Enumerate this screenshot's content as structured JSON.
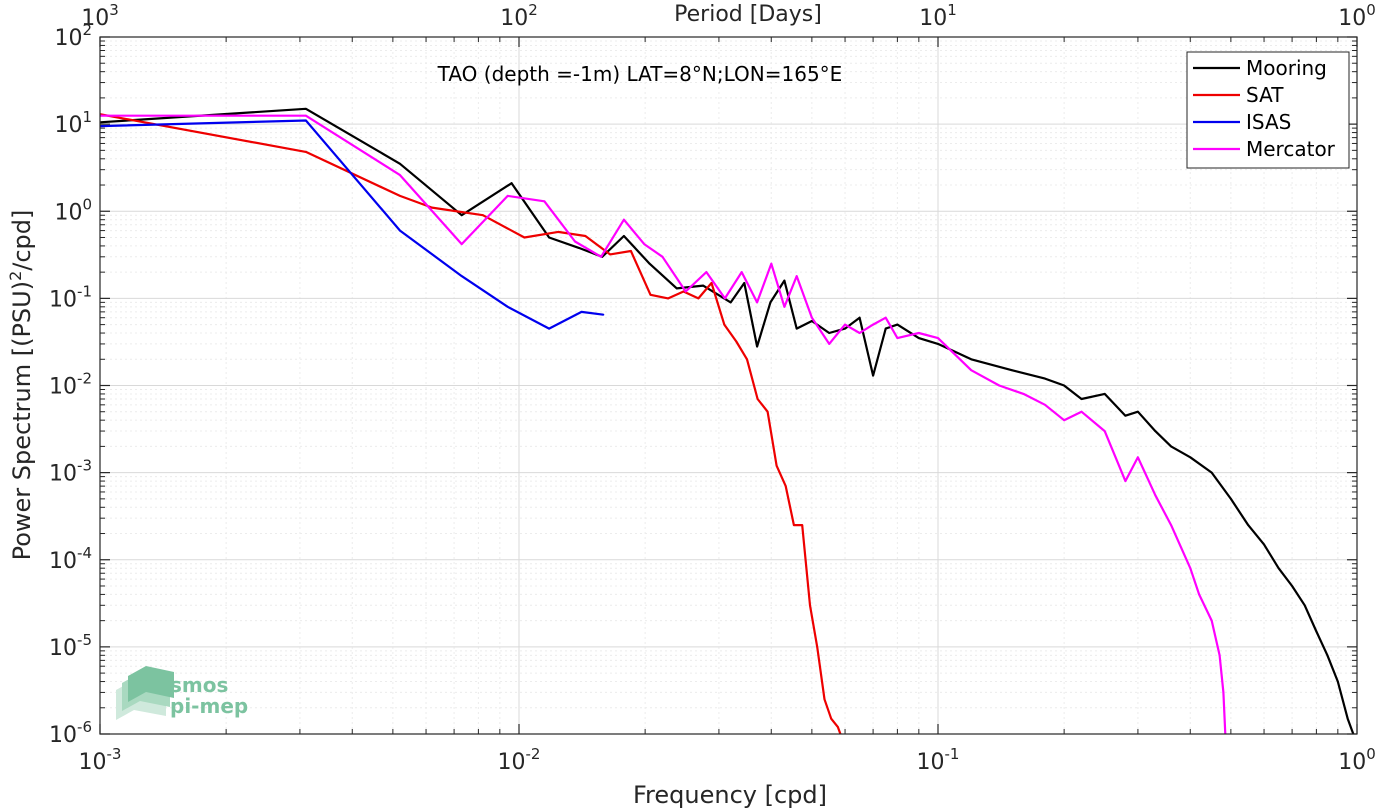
{
  "chart_data": {
    "type": "line",
    "xscale": "log",
    "yscale": "log",
    "xlabel": "Frequency [cpd]",
    "ylabel": "Power Spectrum [(PSU)",
    "ylabel_sup": "2",
    "ylabel_tail": "/cpd]",
    "top_xlabel": "Period [Days]",
    "xlim": [
      0.001,
      1
    ],
    "ylim": [
      1e-06,
      100
    ],
    "grid": true,
    "legend_position": "top-right",
    "x_ticks": [
      {
        "base": "10",
        "exp": "-3"
      },
      {
        "base": "10",
        "exp": "-2"
      },
      {
        "base": "10",
        "exp": "-1"
      },
      {
        "base": "10",
        "exp": "0"
      }
    ],
    "top_ticks": [
      {
        "base": "10",
        "exp": "3"
      },
      {
        "base": "10",
        "exp": "2"
      },
      {
        "base": "10",
        "exp": "1"
      },
      {
        "base": "10",
        "exp": "0"
      }
    ],
    "y_ticks": [
      {
        "base": "10",
        "exp": "2"
      },
      {
        "base": "10",
        "exp": "1"
      },
      {
        "base": "10",
        "exp": "0"
      },
      {
        "base": "10",
        "exp": "-1"
      },
      {
        "base": "10",
        "exp": "-2"
      },
      {
        "base": "10",
        "exp": "-3"
      },
      {
        "base": "10",
        "exp": "-4"
      },
      {
        "base": "10",
        "exp": "-5"
      },
      {
        "base": "10",
        "exp": "-6"
      }
    ],
    "annotation": "TAO (depth =-1m) LAT=8°N;LON=165°E",
    "series": [
      {
        "name": "Mooring",
        "color": "#000000",
        "x": [
          0.001,
          0.0031,
          0.0052,
          0.0073,
          0.0096,
          0.0118,
          0.0139,
          0.0158,
          0.0178,
          0.0205,
          0.0238,
          0.0275,
          0.032,
          0.0345,
          0.037,
          0.0398,
          0.043,
          0.046,
          0.05,
          0.055,
          0.06,
          0.065,
          0.07,
          0.075,
          0.08,
          0.09,
          0.1,
          0.12,
          0.15,
          0.18,
          0.2,
          0.22,
          0.25,
          0.28,
          0.3,
          0.33,
          0.36,
          0.4,
          0.45,
          0.5,
          0.55,
          0.6,
          0.65,
          0.7,
          0.75,
          0.8,
          0.85,
          0.9,
          0.95,
          0.98
        ],
        "y": [
          10.5,
          15,
          3.5,
          0.9,
          2.1,
          0.5,
          0.38,
          0.3,
          0.52,
          0.25,
          0.13,
          0.14,
          0.09,
          0.15,
          0.028,
          0.09,
          0.16,
          0.045,
          0.055,
          0.04,
          0.045,
          0.06,
          0.013,
          0.045,
          0.05,
          0.035,
          0.03,
          0.02,
          0.015,
          0.012,
          0.01,
          0.007,
          0.008,
          0.0045,
          0.005,
          0.003,
          0.002,
          0.0015,
          0.001,
          0.0005,
          0.00025,
          0.00015,
          8e-05,
          5e-05,
          3e-05,
          1.5e-05,
          8e-06,
          4e-06,
          1.5e-06,
          1e-06
        ]
      },
      {
        "name": "SAT",
        "color": "#ee0000",
        "x": [
          0.001,
          0.0031,
          0.0052,
          0.0062,
          0.0082,
          0.0103,
          0.0124,
          0.0144,
          0.0165,
          0.0185,
          0.0206,
          0.0227,
          0.0247,
          0.0268,
          0.0288,
          0.0309,
          0.033,
          0.035,
          0.0371,
          0.0392,
          0.0412,
          0.0433,
          0.0453,
          0.0474,
          0.0495,
          0.0515,
          0.0536,
          0.0556,
          0.0577,
          0.0585
        ],
        "y": [
          13,
          4.8,
          1.5,
          1.1,
          0.9,
          0.5,
          0.58,
          0.52,
          0.32,
          0.35,
          0.11,
          0.1,
          0.12,
          0.1,
          0.15,
          0.05,
          0.032,
          0.02,
          0.007,
          0.005,
          0.0012,
          0.0007,
          0.00025,
          0.00025,
          3e-05,
          1e-05,
          2.5e-06,
          1.5e-06,
          1.2e-06,
          1e-06
        ]
      },
      {
        "name": "ISAS",
        "color": "#0000ee",
        "x": [
          0.001,
          0.0031,
          0.0052,
          0.0073,
          0.0094,
          0.0118,
          0.0141,
          0.0159
        ],
        "y": [
          9.5,
          11,
          0.6,
          0.18,
          0.08,
          0.045,
          0.07,
          0.065
        ]
      },
      {
        "name": "Mercator",
        "color": "#ff00ff",
        "x": [
          0.001,
          0.0031,
          0.0052,
          0.0073,
          0.0094,
          0.0115,
          0.0136,
          0.0157,
          0.0178,
          0.0199,
          0.022,
          0.025,
          0.028,
          0.031,
          0.034,
          0.037,
          0.04,
          0.043,
          0.046,
          0.05,
          0.055,
          0.06,
          0.065,
          0.07,
          0.075,
          0.08,
          0.09,
          0.1,
          0.12,
          0.14,
          0.16,
          0.18,
          0.2,
          0.22,
          0.25,
          0.28,
          0.3,
          0.33,
          0.36,
          0.4,
          0.42,
          0.45,
          0.47,
          0.48,
          0.485
        ],
        "y": [
          12.5,
          12.5,
          2.6,
          0.42,
          1.5,
          1.3,
          0.45,
          0.3,
          0.8,
          0.42,
          0.3,
          0.12,
          0.2,
          0.1,
          0.2,
          0.09,
          0.25,
          0.08,
          0.18,
          0.06,
          0.03,
          0.05,
          0.04,
          0.05,
          0.06,
          0.035,
          0.04,
          0.035,
          0.015,
          0.01,
          0.008,
          0.006,
          0.004,
          0.005,
          0.003,
          0.0008,
          0.0015,
          0.00055,
          0.00025,
          8e-05,
          4e-05,
          2e-05,
          8e-06,
          3e-06,
          1e-06
        ]
      }
    ]
  },
  "logo": {
    "line1": "smos",
    "line2": "pi-mep"
  }
}
